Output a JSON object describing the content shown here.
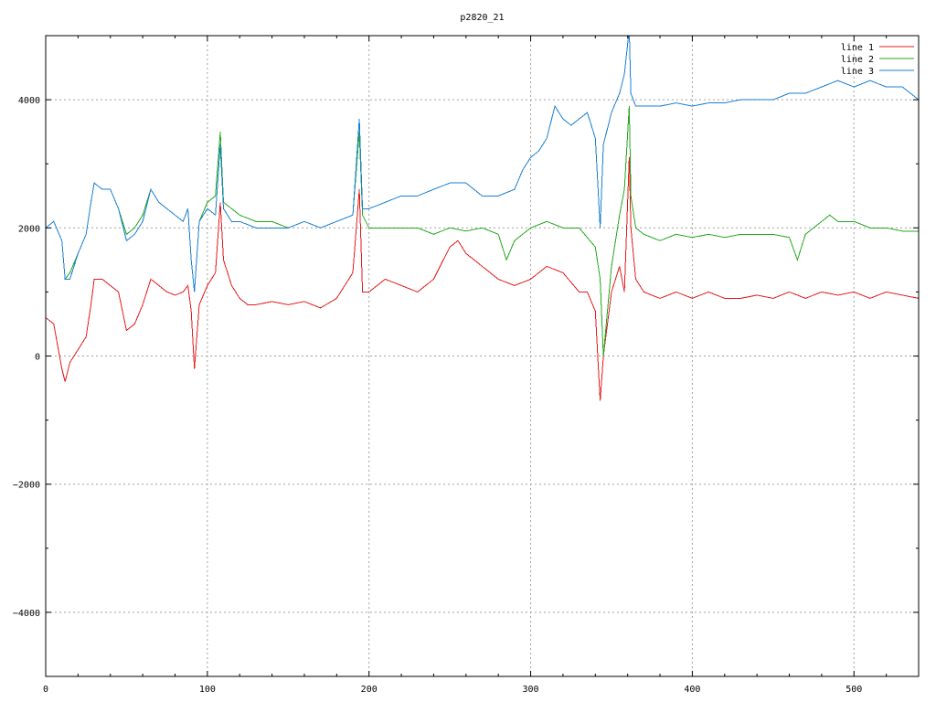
{
  "chart_data": {
    "type": "line",
    "title": "p2820_21",
    "xlabel": "",
    "ylabel": "",
    "xlim": [
      0,
      540
    ],
    "ylim": [
      -5000,
      5000
    ],
    "x_ticks": [
      0,
      100,
      200,
      300,
      400,
      500
    ],
    "y_ticks": [
      -4000,
      -2000,
      0,
      2000,
      4000
    ],
    "y_tick_labels": [
      "-4000",
      "-2000",
      "0",
      "2000",
      "4000"
    ],
    "grid": true,
    "legend_position": "top-right",
    "colors": {
      "line 1": "#e41a1c",
      "line 2": "#22a81e",
      "line 3": "#1a7fd1"
    },
    "series": [
      {
        "name": "line 1",
        "x": [
          0,
          5,
          10,
          12,
          15,
          20,
          25,
          28,
          30,
          35,
          40,
          45,
          50,
          55,
          60,
          65,
          70,
          75,
          80,
          85,
          88,
          90,
          92,
          95,
          100,
          105,
          108,
          110,
          115,
          120,
          125,
          130,
          140,
          150,
          160,
          170,
          180,
          190,
          194,
          196,
          200,
          210,
          220,
          230,
          240,
          250,
          255,
          260,
          265,
          270,
          280,
          290,
          300,
          310,
          320,
          330,
          335,
          340,
          343,
          345,
          350,
          355,
          358,
          361,
          362,
          365,
          370,
          380,
          390,
          400,
          410,
          420,
          430,
          440,
          450,
          460,
          470,
          480,
          490,
          500,
          510,
          520,
          530,
          540
        ],
        "values": [
          600,
          500,
          -200,
          -400,
          -100,
          100,
          300,
          800,
          1200,
          1200,
          1100,
          1000,
          400,
          500,
          800,
          1200,
          1100,
          1000,
          950,
          1000,
          1100,
          700,
          -200,
          800,
          1100,
          1300,
          2400,
          1500,
          1100,
          900,
          800,
          800,
          850,
          800,
          850,
          750,
          900,
          1300,
          2600,
          1000,
          1000,
          1200,
          1100,
          1000,
          1200,
          1700,
          1800,
          1600,
          1500,
          1400,
          1200,
          1100,
          1200,
          1400,
          1300,
          1000,
          1000,
          700,
          -700,
          0,
          1000,
          1400,
          1000,
          3100,
          2000,
          1200,
          1000,
          900,
          1000,
          900,
          1000,
          900,
          900,
          950,
          900,
          1000,
          900,
          1000,
          950,
          1000,
          900,
          1000,
          950,
          900
        ]
      },
      {
        "name": "line 2",
        "x": [
          0,
          5,
          10,
          12,
          15,
          20,
          25,
          28,
          30,
          35,
          40,
          45,
          50,
          55,
          60,
          65,
          70,
          75,
          80,
          85,
          88,
          90,
          92,
          95,
          100,
          105,
          108,
          110,
          115,
          120,
          130,
          140,
          150,
          160,
          170,
          180,
          190,
          194,
          196,
          200,
          210,
          220,
          230,
          240,
          250,
          260,
          270,
          280,
          285,
          290,
          300,
          310,
          320,
          330,
          340,
          343,
          345,
          350,
          355,
          358,
          361,
          362,
          365,
          370,
          380,
          390,
          400,
          410,
          420,
          430,
          440,
          450,
          460,
          465,
          470,
          480,
          485,
          490,
          500,
          510,
          520,
          530,
          540
        ],
        "values": [
          2000,
          2100,
          1800,
          1200,
          1300,
          1600,
          1900,
          2400,
          2700,
          2600,
          2600,
          2300,
          1900,
          2000,
          2200,
          2600,
          2400,
          2300,
          2200,
          2100,
          2300,
          1500,
          1000,
          2100,
          2400,
          2500,
          3500,
          2400,
          2300,
          2200,
          2100,
          2100,
          2000,
          2100,
          2000,
          2100,
          2200,
          3500,
          2200,
          2000,
          2000,
          2000,
          2000,
          1900,
          2000,
          1950,
          2000,
          1900,
          1500,
          1800,
          2000,
          2100,
          2000,
          2000,
          1700,
          1200,
          0,
          1400,
          2200,
          2600,
          3900,
          2500,
          2000,
          1900,
          1800,
          1900,
          1850,
          1900,
          1850,
          1900,
          1900,
          1900,
          1850,
          1500,
          1900,
          2100,
          2200,
          2100,
          2100,
          2000,
          2000,
          1950,
          1950
        ]
      },
      {
        "name": "line 3",
        "x": [
          0,
          5,
          10,
          12,
          15,
          20,
          25,
          28,
          30,
          35,
          40,
          45,
          50,
          55,
          60,
          65,
          70,
          75,
          80,
          85,
          88,
          90,
          92,
          95,
          100,
          105,
          108,
          110,
          115,
          120,
          130,
          140,
          150,
          160,
          170,
          180,
          190,
          194,
          196,
          200,
          210,
          220,
          230,
          240,
          250,
          260,
          270,
          280,
          290,
          295,
          300,
          305,
          310,
          315,
          320,
          325,
          330,
          335,
          340,
          343,
          345,
          350,
          355,
          358,
          361,
          362,
          365,
          370,
          380,
          390,
          400,
          410,
          420,
          430,
          440,
          450,
          460,
          470,
          480,
          490,
          500,
          510,
          520,
          530,
          540
        ],
        "values": [
          2000,
          2100,
          1800,
          1200,
          1200,
          1600,
          1900,
          2400,
          2700,
          2600,
          2600,
          2300,
          1800,
          1900,
          2100,
          2600,
          2400,
          2300,
          2200,
          2100,
          2300,
          1500,
          1000,
          2100,
          2300,
          2200,
          3300,
          2300,
          2100,
          2100,
          2000,
          2000,
          2000,
          2100,
          2000,
          2100,
          2200,
          3700,
          2300,
          2300,
          2400,
          2500,
          2500,
          2600,
          2700,
          2700,
          2500,
          2500,
          2600,
          2900,
          3100,
          3200,
          3400,
          3900,
          3700,
          3600,
          3700,
          3800,
          3400,
          2000,
          3300,
          3800,
          4100,
          4400,
          5100,
          4100,
          3900,
          3900,
          3900,
          3950,
          3900,
          3950,
          3950,
          4000,
          4000,
          4000,
          4100,
          4100,
          4200,
          4300,
          4200,
          4300,
          4200,
          4200,
          4000
        ]
      }
    ]
  }
}
